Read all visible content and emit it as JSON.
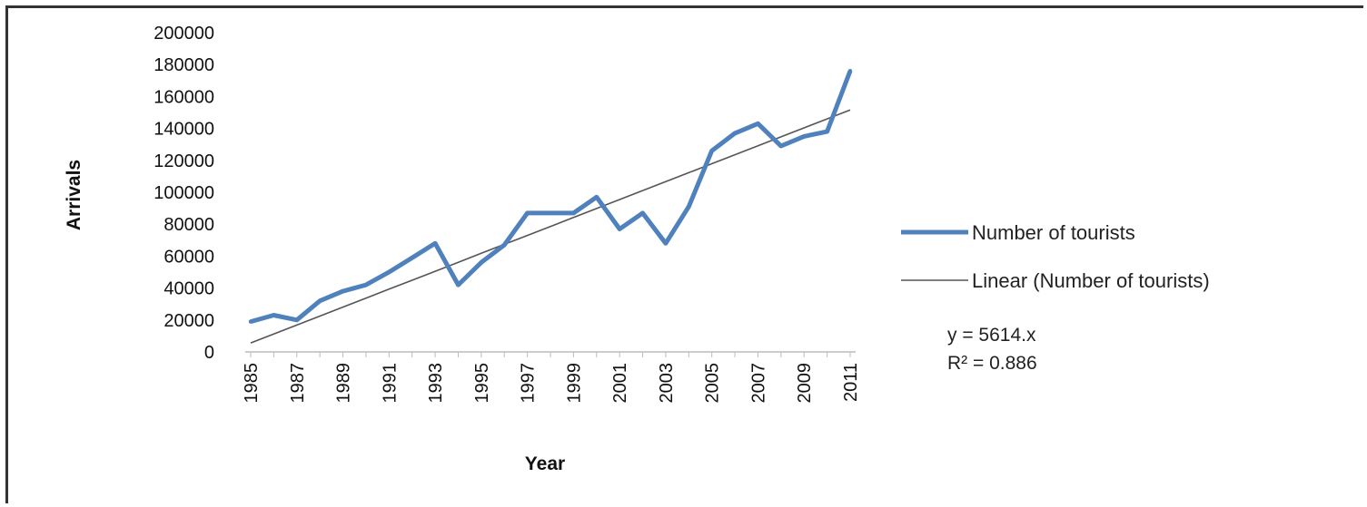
{
  "chart_data": {
    "type": "line",
    "xlabel": "Year",
    "ylabel": "Arrivals",
    "ylim": [
      0,
      200000
    ],
    "y_ticks": [
      "0",
      "20000",
      "40000",
      "60000",
      "80000",
      "100000",
      "120000",
      "140000",
      "160000",
      "180000",
      "200000"
    ],
    "x_tick_labels": [
      "1985",
      "1987",
      "1989",
      "1991",
      "1993",
      "1995",
      "1997",
      "1999",
      "2001",
      "2003",
      "2005",
      "2007",
      "2009",
      "2011"
    ],
    "x": [
      1985,
      1986,
      1987,
      1988,
      1989,
      1990,
      1991,
      1992,
      1993,
      1994,
      1995,
      1996,
      1997,
      1998,
      1999,
      2000,
      2001,
      2002,
      2003,
      2004,
      2005,
      2006,
      2007,
      2008,
      2009,
      2010,
      2011
    ],
    "series": [
      {
        "name": "Number of tourists",
        "color": "#4f81bd",
        "values": [
          19000,
          23000,
          20000,
          32000,
          38000,
          42000,
          50000,
          59000,
          68000,
          42000,
          56000,
          67000,
          87000,
          87000,
          87000,
          97000,
          77000,
          87000,
          68000,
          91000,
          126000,
          137000,
          143000,
          129000,
          135000,
          138000,
          176000
        ]
      },
      {
        "name": "Linear (Number of tourists)",
        "color": "#555555",
        "type": "trendline",
        "values": [
          5614,
          11228,
          16842,
          22456,
          28070,
          33684,
          39298,
          44912,
          50526,
          56140,
          61754,
          67368,
          72982,
          78596,
          84210,
          89824,
          95438,
          101052,
          106666,
          112280,
          117894,
          123508,
          129122,
          134736,
          140350,
          145964,
          151578
        ]
      }
    ],
    "legend_position": "right",
    "annotations": [
      "y = 5614.x",
      "R² = 0.886"
    ],
    "grid": false
  }
}
